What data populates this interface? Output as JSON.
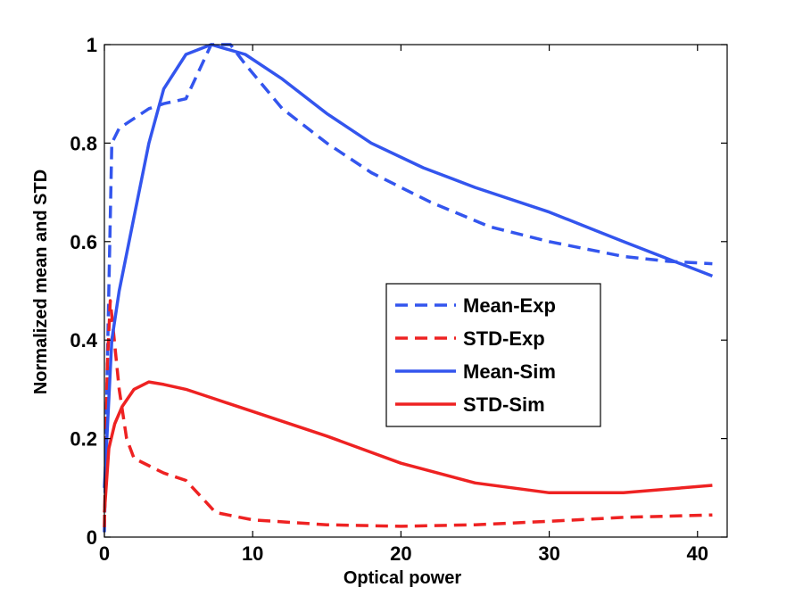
{
  "chart_data": {
    "type": "line",
    "title": "",
    "xlabel": "Optical power",
    "ylabel": "Normalized mean and STD",
    "xlim": [
      0,
      42
    ],
    "ylim": [
      0,
      1
    ],
    "xticks": [
      0,
      10,
      20,
      30,
      40
    ],
    "yticks": [
      0,
      0.2,
      0.4,
      0.6,
      0.8,
      1
    ],
    "xtick_labels": [
      "0",
      "10",
      "20",
      "30",
      "40"
    ],
    "ytick_labels": [
      "0",
      "0.2",
      "0.4",
      "0.6",
      "0.8",
      "1"
    ],
    "grid": false,
    "legend_position": "center-right",
    "series": [
      {
        "name": "Mean-Exp",
        "color": "#3355ee",
        "style": "dashed",
        "x": [
          0,
          0.2,
          0.5,
          1,
          2,
          3,
          4,
          5.5,
          7.2,
          8.5,
          9.5,
          12,
          15,
          18,
          22,
          26,
          30,
          35,
          38,
          41
        ],
        "y": [
          0.01,
          0.35,
          0.8,
          0.83,
          0.85,
          0.87,
          0.88,
          0.89,
          1.0,
          1.0,
          0.96,
          0.87,
          0.8,
          0.74,
          0.68,
          0.63,
          0.6,
          0.57,
          0.56,
          0.555
        ]
      },
      {
        "name": "STD-Exp",
        "color": "#ee2222",
        "style": "dashed",
        "x": [
          0,
          0.2,
          0.4,
          0.6,
          1,
          1.5,
          2,
          3,
          4,
          5.5,
          7.5,
          10,
          15,
          20,
          25,
          30,
          35,
          41
        ],
        "y": [
          0.02,
          0.35,
          0.48,
          0.42,
          0.3,
          0.2,
          0.16,
          0.145,
          0.13,
          0.115,
          0.05,
          0.035,
          0.025,
          0.022,
          0.025,
          0.032,
          0.04,
          0.045
        ]
      },
      {
        "name": "Mean-Sim",
        "color": "#3355ee",
        "style": "solid",
        "x": [
          0,
          0.5,
          1,
          2,
          3,
          4,
          5.5,
          7.2,
          9.5,
          12,
          15,
          18,
          21.5,
          25,
          30,
          35,
          41
        ],
        "y": [
          0.1,
          0.4,
          0.5,
          0.65,
          0.8,
          0.91,
          0.98,
          1.0,
          0.98,
          0.93,
          0.86,
          0.8,
          0.75,
          0.71,
          0.66,
          0.6,
          0.53
        ]
      },
      {
        "name": "STD-Sim",
        "color": "#ee2222",
        "style": "solid",
        "x": [
          0,
          0.3,
          0.7,
          1.2,
          2,
          3,
          4,
          5.5,
          7.5,
          10,
          15,
          20,
          25,
          30,
          35,
          41
        ],
        "y": [
          0.05,
          0.18,
          0.23,
          0.265,
          0.3,
          0.315,
          0.31,
          0.3,
          0.28,
          0.255,
          0.205,
          0.15,
          0.11,
          0.09,
          0.09,
          0.105
        ]
      }
    ]
  }
}
